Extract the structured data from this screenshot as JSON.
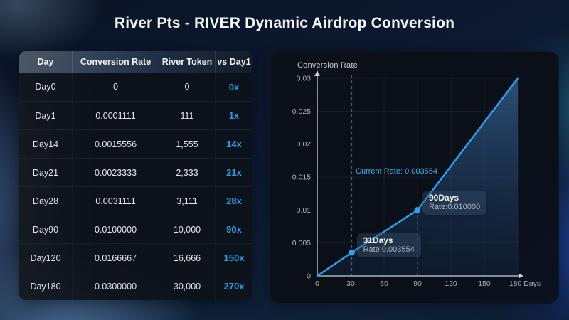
{
  "title": "River Pts - RIVER Dynamic Airdrop Conversion",
  "colors": {
    "accent": "#2b9fe8",
    "line": "#2ba3f5"
  },
  "table": {
    "headers": [
      "Day",
      "Conversion Rate",
      "River Token",
      "vs Day1"
    ],
    "rows": [
      {
        "day": "Day0",
        "rate": "0",
        "token": "0",
        "vs": "0x"
      },
      {
        "day": "Day1",
        "rate": "0.0001111",
        "token": "111",
        "vs": "1x"
      },
      {
        "day": "Day14",
        "rate": "0.0015556",
        "token": "1,555",
        "vs": "14x"
      },
      {
        "day": "Day21",
        "rate": "0.0023333",
        "token": "2,333",
        "vs": "21x"
      },
      {
        "day": "Day28",
        "rate": "0.0031111",
        "token": "3,111",
        "vs": "28x"
      },
      {
        "day": "Day90",
        "rate": "0.0100000",
        "token": "10,000",
        "vs": "90x"
      },
      {
        "day": "Day120",
        "rate": "0.0166667",
        "token": "16,666",
        "vs": "150x"
      },
      {
        "day": "Day180",
        "rate": "0.0300000",
        "token": "30,000",
        "vs": "270x"
      }
    ]
  },
  "chart_data": {
    "type": "line",
    "title": "Conversion Rate",
    "xlabel": "Days",
    "ylabel": "Conversion Rate",
    "x": [
      0,
      31,
      90,
      180
    ],
    "y": [
      0,
      0.003554,
      0.01,
      0.03
    ],
    "xlim": [
      0,
      180
    ],
    "ylim": [
      0,
      0.03
    ],
    "x_tick_values": [
      0,
      30,
      60,
      90,
      120,
      150,
      180
    ],
    "x_ticks": [
      "0",
      "30",
      "60",
      "90",
      "120",
      "150",
      "180 Days"
    ],
    "y_tick_values": [
      0,
      0.005,
      0.01,
      0.015,
      0.02,
      0.025,
      0.03
    ],
    "y_ticks": [
      "0",
      "0.005",
      "0.01",
      "0.015",
      "0.02",
      "0.025",
      "0.03"
    ],
    "grid": true,
    "area_fill": true,
    "legend": "none",
    "current_rate_label": "Current Rate: 0.003554",
    "annotations": [
      {
        "label": "31Days",
        "value": "Rate:0.003554",
        "x": 31,
        "y": 0.003554,
        "guide": "full"
      },
      {
        "label": "90Days",
        "value": "Rate:0.010000",
        "x": 90,
        "y": 0.01,
        "guide": "below"
      }
    ]
  }
}
